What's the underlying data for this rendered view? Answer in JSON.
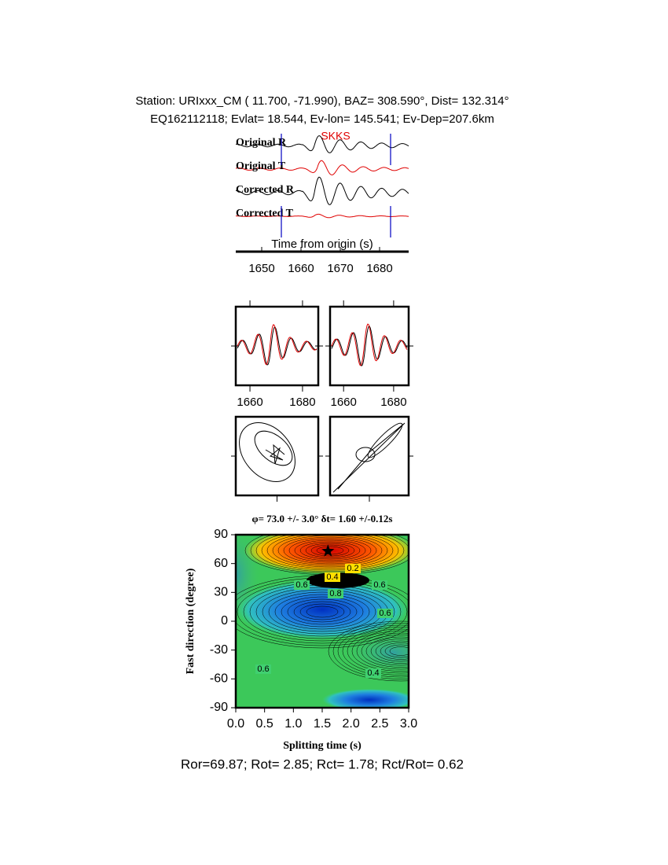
{
  "header": {
    "station": "Station: URIxxx_CM (  11.700,  -71.990), BAZ=  308.590°, Dist=  132.314°",
    "event": "EQ162112118; Evlat=  18.544, Ev-lon= 145.541; Ev-Dep=207.6km"
  },
  "traces": {
    "phase": "SKKS",
    "labels": [
      "Original R",
      "Original T",
      "Corrected R",
      "Corrected T"
    ],
    "xlabel": "Time from origin (s)",
    "xlim": [
      1643.4,
      1687.4
    ],
    "xticks": [
      1650,
      1660,
      1670,
      1680
    ]
  },
  "comparison": {
    "xlim": [
      1654.6,
      1686
    ],
    "xticks": [
      1660,
      1680
    ]
  },
  "grid_search": {
    "title": "φ= 73.0 +/- 3.0° δt= 1.60 +/-0.12s",
    "xlabel": "Splitting time (s)",
    "ylabel": "Fast direction (degree)",
    "xlim": [
      0,
      3
    ],
    "ylim": [
      -90,
      90
    ],
    "xticks": [
      {
        "value": 0,
        "label": "0.0"
      },
      0.5,
      {
        "value": 1,
        "label": "1.0"
      },
      1.5,
      {
        "value": 2,
        "label": "2.0"
      },
      2.5,
      {
        "value": 3,
        "label": "3.0"
      }
    ],
    "yticks": [
      90,
      60,
      30,
      0,
      -30,
      -60,
      -90
    ],
    "best": {
      "dt": 1.6,
      "phi": 73.0
    },
    "contour_labels": [
      0.2,
      0.4,
      0.6,
      0.6,
      0.8,
      0.6,
      0.6,
      0.4
    ]
  },
  "footer": "Ror=69.87; Rot= 2.85; Rct= 1.78; Rct/Rot= 0.62"
}
